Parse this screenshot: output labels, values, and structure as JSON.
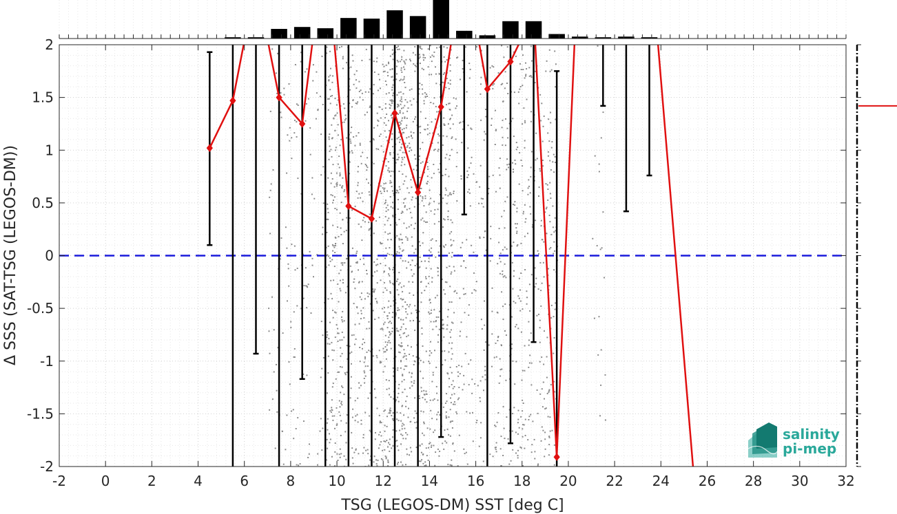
{
  "chart_data": {
    "type": "scatter",
    "xlabel": "TSG (LEGOS-DM) SST [deg C]",
    "ylabel": "Δ SSS (SAT-TSG (LEGOS-DM))",
    "xlim": [
      -2,
      32
    ],
    "ylim": [
      -2,
      2
    ],
    "xticks": [
      -2,
      0,
      2,
      4,
      6,
      8,
      10,
      12,
      14,
      16,
      18,
      20,
      22,
      24,
      26,
      28,
      30,
      32
    ],
    "yticks": [
      -2,
      -1.5,
      -1,
      -0.5,
      0,
      0.5,
      1,
      1.5,
      2
    ],
    "grid": "dotted",
    "zero_line": {
      "y": 0,
      "style": "dashed",
      "color": "#1a1adb"
    },
    "bins": [
      4.5,
      5.5,
      6.5,
      7.5,
      8.5,
      9.5,
      10.5,
      11.5,
      12.5,
      13.5,
      14.5,
      15.5,
      16.5,
      17.5,
      18.5,
      19.5,
      20.5,
      21.5,
      22.5,
      23.5,
      24.5,
      25.5
    ],
    "mean": [
      1.02,
      1.47,
      2.6,
      1.5,
      1.25,
      3.0,
      0.47,
      0.35,
      1.35,
      0.6,
      1.41,
      2.8,
      1.58,
      1.84,
      2.3,
      -1.91,
      3.2,
      null,
      null,
      3.0,
      null,
      -2.3
    ],
    "errorbar_low": [
      0.1,
      -2.5,
      -0.93,
      -2.5,
      -1.17,
      -2.5,
      -2.5,
      -2.5,
      -2.5,
      -2.5,
      -1.72,
      0.39,
      -2.5,
      -1.78,
      -0.82,
      -2.5,
      null,
      1.42,
      0.42,
      0.76,
      null,
      null
    ],
    "errorbar_high": [
      1.93,
      2.5,
      2.5,
      2.5,
      2.5,
      2.5,
      2.5,
      2.5,
      2.5,
      2.5,
      2.5,
      2.5,
      2.5,
      2.5,
      2.5,
      1.75,
      null,
      2.5,
      2.5,
      2.5,
      null,
      null
    ],
    "histogram_counts": [
      0,
      2,
      2,
      15,
      18,
      16,
      32,
      31,
      44,
      35,
      60,
      12,
      5,
      27,
      27,
      7,
      3,
      2,
      3,
      2,
      0,
      0
    ],
    "colors": {
      "mean_line": "#e01010",
      "errorbars": "#000000",
      "scatter": "#8a8a8a",
      "histogram": "#000000"
    },
    "side_panel_mean": 1.42
  },
  "logo": {
    "line1": "salinity",
    "line2": "pi-mep"
  }
}
